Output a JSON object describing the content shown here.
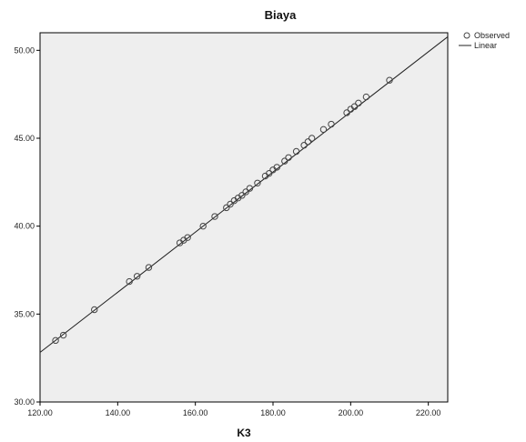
{
  "chart_data": {
    "type": "scatter",
    "title": "Biaya",
    "xlabel": "K3",
    "ylabel": "",
    "xlim": [
      120,
      225
    ],
    "ylim": [
      30,
      51
    ],
    "xticks": [
      120,
      140,
      160,
      180,
      200,
      220
    ],
    "yticks": [
      30,
      35,
      40,
      45,
      50
    ],
    "xtick_labels": [
      "120.00",
      "140.00",
      "160.00",
      "180.00",
      "200.00",
      "220.00"
    ],
    "ytick_labels": [
      "30.00",
      "35.00",
      "40.00",
      "45.00",
      "50.00"
    ],
    "grid": false,
    "legend_position": "top-right",
    "background_color": "#eeeeee",
    "series": [
      {
        "name": "Observed",
        "marker": "circle",
        "x": [
          124,
          126,
          134,
          143,
          145,
          148,
          156,
          157,
          158,
          162,
          165,
          168,
          169,
          170,
          171,
          172,
          173,
          174,
          176,
          178,
          179,
          180,
          181,
          183,
          184,
          186,
          188,
          189,
          190,
          193,
          195,
          199,
          200,
          201,
          202,
          204,
          210
        ],
        "y": [
          33.5,
          33.8,
          35.25,
          36.85,
          37.15,
          37.65,
          39.05,
          39.2,
          39.35,
          40.0,
          40.55,
          41.05,
          41.25,
          41.45,
          41.6,
          41.75,
          41.95,
          42.15,
          42.45,
          42.85,
          43.0,
          43.2,
          43.35,
          43.7,
          43.9,
          44.25,
          44.6,
          44.8,
          45.0,
          45.5,
          45.8,
          46.45,
          46.65,
          46.8,
          47.0,
          47.35,
          48.3
        ]
      },
      {
        "name": "Linear",
        "type": "line",
        "x": [
          120,
          225
        ],
        "y": [
          32.82,
          50.77
        ]
      }
    ]
  }
}
